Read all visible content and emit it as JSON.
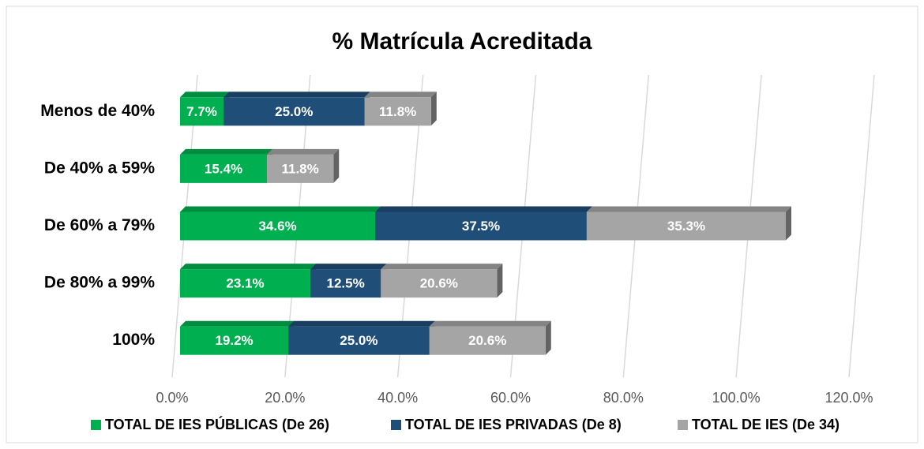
{
  "chart_data": {
    "type": "stacked-bar-horizontal",
    "title": "% Matrícula Acreditada",
    "categories": [
      "Menos de 40%",
      "De 40% a 59%",
      "De 60% a 79%",
      "De 80% a 99%",
      "100%"
    ],
    "series": [
      {
        "name": "TOTAL DE IES PÚBLICAS (De 26)",
        "color": "#00b050",
        "values": [
          7.7,
          15.4,
          34.6,
          23.1,
          19.2
        ],
        "value_labels": [
          "7.7%",
          "15.4%",
          "34.6%",
          "23.1%",
          "19.2%"
        ]
      },
      {
        "name": "TOTAL DE IES PRIVADAS (De 8)",
        "color": "#1f4e79",
        "values": [
          25.0,
          null,
          37.5,
          12.5,
          25.0
        ],
        "value_labels": [
          "25.0%",
          null,
          "37.5%",
          "12.5%",
          "25.0%"
        ]
      },
      {
        "name": "TOTAL DE IES (De 34)",
        "color": "#a5a5a5",
        "values": [
          11.8,
          11.8,
          35.3,
          20.6,
          20.6
        ],
        "value_labels": [
          "11.8%",
          "11.8%",
          "35.3%",
          "20.6%",
          "20.6%"
        ]
      }
    ],
    "xlim": [
      0,
      120
    ],
    "xticks": [
      {
        "value": 0,
        "label": "0.0%"
      },
      {
        "value": 20,
        "label": "20.0%"
      },
      {
        "value": 40,
        "label": "40.0%"
      },
      {
        "value": 60,
        "label": "60.0%"
      },
      {
        "value": 80,
        "label": "80.0%"
      },
      {
        "value": 100,
        "label": "100.0%"
      },
      {
        "value": 120,
        "label": "120.0%"
      }
    ],
    "grid": true,
    "legend": "bottom"
  }
}
